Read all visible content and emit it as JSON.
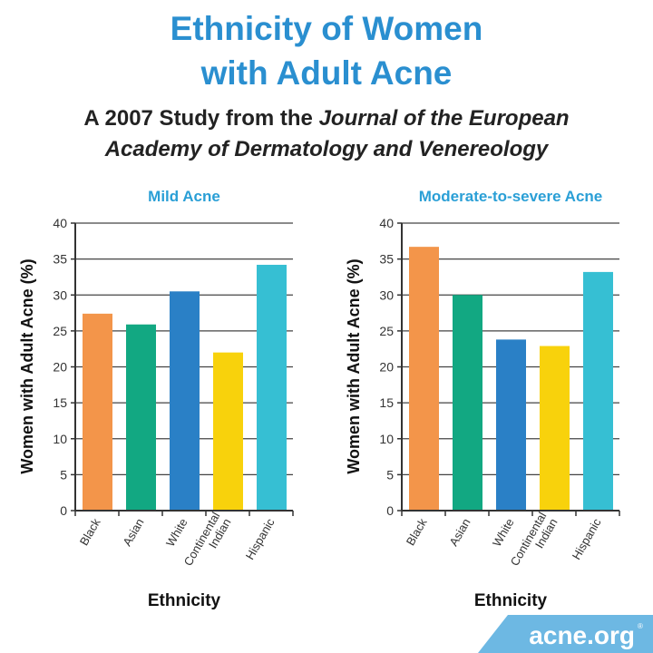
{
  "header": {
    "title_line1": "Ethnicity of Women",
    "title_line2": "with Adult Acne",
    "subtitle_line1_plain": "A 2007 Study from the ",
    "subtitle_line1_italic": "Journal of the European",
    "subtitle_line2_italic": "Academy of Dermatology and Venereology"
  },
  "logo": {
    "text": "acne.org",
    "mark": "®",
    "color": "#6db8e3"
  },
  "chart_data": [
    {
      "type": "bar",
      "title": "Mild Acne",
      "categories": [
        "Black",
        "Asian",
        "White",
        "Continental Indian",
        "Hispanic"
      ],
      "values": [
        27.4,
        25.9,
        30.5,
        22.0,
        34.2
      ],
      "colors": [
        "#f3954a",
        "#12a882",
        "#2a80c6",
        "#f8d20c",
        "#36bfd3"
      ],
      "xlabel": "Ethnicity",
      "ylabel": "Women with Adult Acne (%)",
      "ylim": [
        0,
        40
      ],
      "yticks": [
        0,
        5,
        10,
        15,
        20,
        25,
        30,
        35,
        40
      ],
      "grid": true
    },
    {
      "type": "bar",
      "title": "Moderate-to-severe Acne",
      "categories": [
        "Black",
        "Asian",
        "White",
        "Continental Indian",
        "Hispanic"
      ],
      "values": [
        36.7,
        30.0,
        23.8,
        22.9,
        33.2
      ],
      "colors": [
        "#f3954a",
        "#12a882",
        "#2a80c6",
        "#f8d20c",
        "#36bfd3"
      ],
      "xlabel": "Ethnicity",
      "ylabel": "Women with Adult Acne (%)",
      "ylim": [
        0,
        40
      ],
      "yticks": [
        0,
        5,
        10,
        15,
        20,
        25,
        30,
        35,
        40
      ],
      "grid": true
    }
  ]
}
